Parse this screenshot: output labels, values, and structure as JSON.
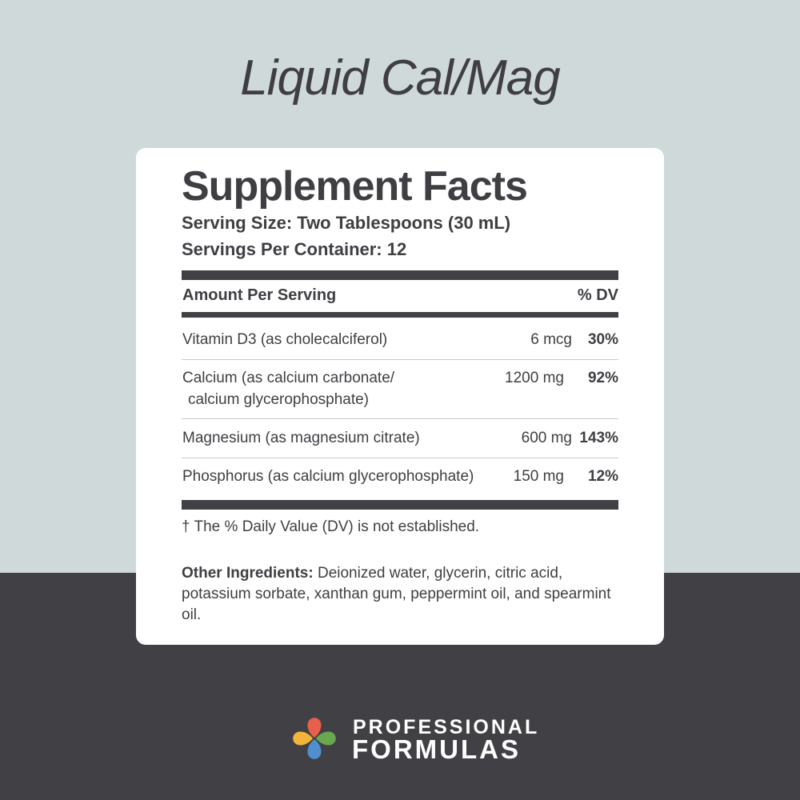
{
  "product_title": "Liquid Cal/Mag",
  "facts": {
    "heading": "Supplement Facts",
    "serving_size": "Serving Size: Two Tablespoons (30 mL)",
    "servings_per_container": "Servings Per Container: 12",
    "col_amount": "Amount Per Serving",
    "col_dv": "% DV",
    "rows": [
      {
        "name": "Vitamin D3 (as cholecalciferol)",
        "amount": "6 mcg",
        "dv": "30%"
      },
      {
        "name": "Calcium (as calcium carbonate/",
        "name2": "calcium glycerophosphate)",
        "amount": "1200 mg",
        "dv": "92%"
      },
      {
        "name": "Magnesium (as magnesium citrate)",
        "amount": "600 mg",
        "dv": "143%"
      },
      {
        "name": "Phosphorus (as calcium glycerophosphate)",
        "amount": "150 mg",
        "dv": "12%"
      }
    ],
    "footnote": "† The % Daily Value (DV) is not established.",
    "other_label": "Other Ingredients:",
    "other_text": " Deionized water, glycerin, citric acid, potassium sorbate, xanthan gum, peppermint oil, and spearmint oil."
  },
  "brand": {
    "line1": "PROFESSIONAL",
    "line2": "FORMULAS",
    "logo_colors": [
      "#e8604c",
      "#6aa84f",
      "#4f8fcf",
      "#f3b43a"
    ]
  },
  "colors": {
    "background_top": "#cfd9da",
    "background_bottom": "#414045",
    "text": "#3f3e43"
  }
}
